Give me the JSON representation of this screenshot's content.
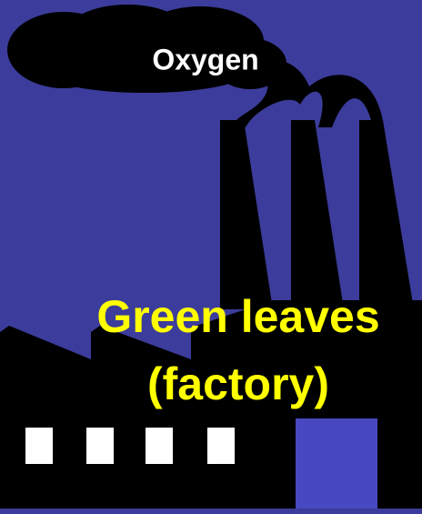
{
  "smoke_label": "Oxygen",
  "factory_label": {
    "line1": "Green leaves",
    "line2": "(factory)"
  }
}
